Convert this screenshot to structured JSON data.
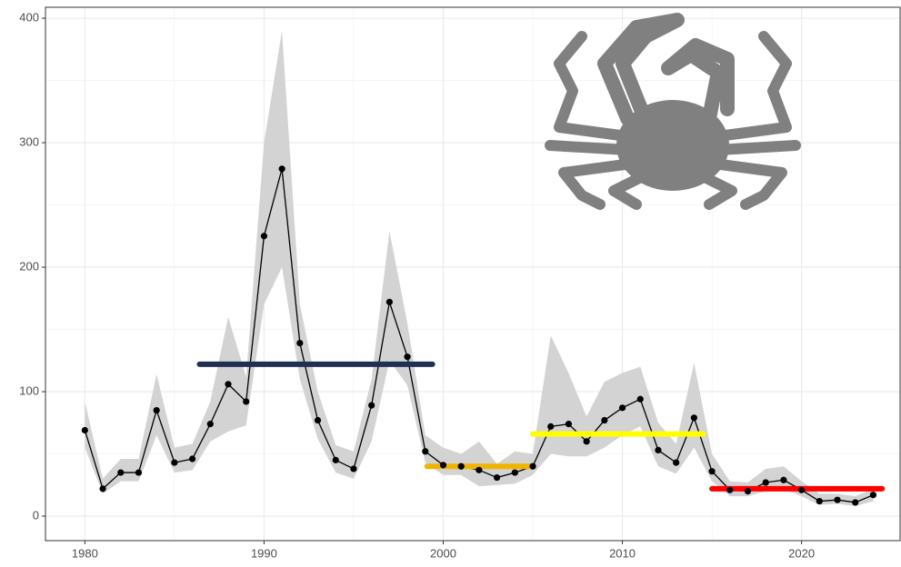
{
  "chart_data": {
    "type": "line",
    "x": [
      1980,
      1981,
      1982,
      1983,
      1984,
      1985,
      1986,
      1987,
      1988,
      1989,
      1990,
      1991,
      1992,
      1993,
      1994,
      1995,
      1996,
      1997,
      1998,
      1999,
      2000,
      2001,
      2002,
      2003,
      2004,
      2005,
      2006,
      2007,
      2008,
      2009,
      2010,
      2011,
      2012,
      2013,
      2014,
      2015,
      2016,
      2017,
      2018,
      2019,
      2020,
      2021,
      2022,
      2023,
      2024
    ],
    "values": [
      69,
      22,
      35,
      35,
      85,
      43,
      46,
      74,
      106,
      92,
      225,
      279,
      139,
      77,
      45,
      38,
      89,
      172,
      128,
      52,
      41,
      40,
      37,
      31,
      35,
      40,
      72,
      74,
      60,
      77,
      87,
      94,
      53,
      43,
      79,
      36,
      21,
      20,
      27,
      29,
      21,
      12,
      13,
      11,
      17
    ],
    "band_upper": [
      92,
      30,
      46,
      46,
      114,
      55,
      58,
      92,
      160,
      112,
      300,
      390,
      170,
      100,
      57,
      52,
      110,
      229,
      155,
      65,
      55,
      50,
      60,
      42,
      52,
      50,
      145,
      115,
      80,
      108,
      115,
      120,
      75,
      58,
      123,
      50,
      28,
      27,
      38,
      40,
      28,
      18,
      18,
      16,
      22
    ],
    "band_lower": [
      55,
      18,
      28,
      28,
      65,
      35,
      37,
      60,
      68,
      73,
      170,
      200,
      110,
      62,
      35,
      30,
      60,
      125,
      105,
      43,
      33,
      33,
      24,
      25,
      26,
      33,
      50,
      48,
      48,
      55,
      65,
      72,
      40,
      34,
      55,
      28,
      16,
      16,
      20,
      22,
      16,
      9,
      10,
      8,
      12
    ],
    "color": "#000000",
    "band_color": "#d3d3d3",
    "periods": [
      {
        "start": 1986.4,
        "end": 1999.4,
        "value": 122,
        "color": "#1f3050"
      },
      {
        "start": 1999.1,
        "end": 2005.0,
        "value": 40,
        "color": "#f0b400"
      },
      {
        "start": 2005.0,
        "end": 2014.5,
        "value": 66,
        "color": "#ffff00"
      },
      {
        "start": 2015.0,
        "end": 2024.5,
        "value": 22,
        "color": "#ff0000"
      }
    ],
    "xlim": [
      1977.8,
      2025.5
    ],
    "ylim": [
      -19.7,
      408.8
    ],
    "xticks": [
      1980,
      1990,
      2000,
      2010,
      2020
    ],
    "yticks": [
      0,
      100,
      200,
      300,
      400
    ],
    "grid": true
  }
}
